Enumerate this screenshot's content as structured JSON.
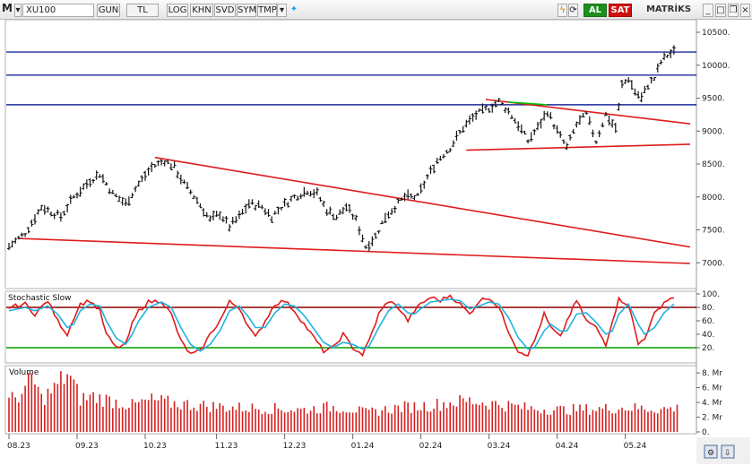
{
  "toolbar": {
    "app_mark": "M",
    "symbol": "XU100",
    "buttons": [
      "GUN",
      "TL",
      "LOG",
      "KHN",
      "SVD",
      "SYM",
      "TMP"
    ],
    "buy_label": "AL",
    "sell_label": "SAT",
    "brand": "MATRİKS",
    "buy_color": "#1a8f1a",
    "sell_color": "#d01010"
  },
  "chart_data": [
    {
      "type": "ohlc",
      "panel": "price",
      "x_tick_labels": [
        "08.23",
        "09.23",
        "10.23",
        "11.23",
        "12.23",
        "01.24",
        "02.24",
        "03.24",
        "04.24",
        "05.24"
      ],
      "y_tick_labels": [
        "10500.",
        "10000.",
        "9500.",
        "9000.",
        "8500.",
        "8000.",
        "7500.",
        "7000."
      ],
      "ylim": [
        6650,
        10650
      ],
      "anchors": [
        [
          0,
          7250
        ],
        [
          5,
          7450
        ],
        [
          10,
          7850
        ],
        [
          16,
          7700
        ],
        [
          20,
          8000
        ],
        [
          25,
          8250
        ],
        [
          28,
          8350
        ],
        [
          32,
          8050
        ],
        [
          36,
          7900
        ],
        [
          40,
          8200
        ],
        [
          44,
          8450
        ],
        [
          48,
          8550
        ],
        [
          51,
          8450
        ],
        [
          54,
          8200
        ],
        [
          58,
          7950
        ],
        [
          62,
          7650
        ],
        [
          65,
          7750
        ],
        [
          68,
          7550
        ],
        [
          71,
          7700
        ],
        [
          74,
          7900
        ],
        [
          78,
          7850
        ],
        [
          81,
          7700
        ],
        [
          84,
          7850
        ],
        [
          88,
          8000
        ],
        [
          92,
          8100
        ],
        [
          95,
          8050
        ],
        [
          98,
          7800
        ],
        [
          101,
          7700
        ],
        [
          104,
          7850
        ],
        [
          107,
          7650
        ],
        [
          110,
          7250
        ],
        [
          113,
          7400
        ],
        [
          116,
          7700
        ],
        [
          119,
          7850
        ],
        [
          122,
          8000
        ],
        [
          126,
          8000
        ],
        [
          129,
          8300
        ],
        [
          132,
          8550
        ],
        [
          136,
          8750
        ],
        [
          140,
          9050
        ],
        [
          144,
          9250
        ],
        [
          148,
          9350
        ],
        [
          151,
          9450
        ],
        [
          154,
          9300
        ],
        [
          157,
          9100
        ],
        [
          160,
          8850
        ],
        [
          163,
          9050
        ],
        [
          166,
          9300
        ],
        [
          169,
          9000
        ],
        [
          172,
          8750
        ],
        [
          175,
          9100
        ],
        [
          178,
          9250
        ],
        [
          181,
          8850
        ],
        [
          184,
          9250
        ],
        [
          187,
          9050
        ],
        [
          188,
          9350
        ],
        [
          189,
          9700
        ],
        [
          191,
          9800
        ],
        [
          193,
          9600
        ],
        [
          195,
          9500
        ],
        [
          197,
          9700
        ],
        [
          199,
          9800
        ],
        [
          201,
          10050
        ],
        [
          203,
          10150
        ],
        [
          205,
          10200
        ]
      ],
      "horizontal_lines": [
        10200,
        9850,
        9400
      ],
      "trend_lines": [
        {
          "color": "#e01b1b",
          "from": [
            45,
            8600
          ],
          "to": [
            210,
            7240
          ]
        },
        {
          "color": "#e01b1b",
          "from": [
            3,
            7370
          ],
          "to": [
            210,
            6990
          ]
        },
        {
          "color": "#e01b1b",
          "from": [
            147,
            9480
          ],
          "to": [
            210,
            9110
          ]
        },
        {
          "color": "#e01b1b",
          "from": [
            141,
            8710
          ],
          "to": [
            210,
            8800
          ]
        },
        {
          "color": "#00c000",
          "from": [
            154,
            9440
          ],
          "to": [
            166,
            9400
          ]
        }
      ]
    },
    {
      "type": "line",
      "panel": "stochastic",
      "title": "Stochastic Slow",
      "y_tick_labels": [
        "100.",
        "80.",
        "60.",
        "40.",
        "20."
      ],
      "ylim": [
        0,
        100
      ],
      "levels": [
        {
          "value": 80,
          "color": "#8b0000"
        },
        {
          "value": 20,
          "color": "#00a000"
        }
      ],
      "series": [
        {
          "color": "#e01b1b",
          "anchors": [
            [
              0,
              80
            ],
            [
              5,
              85
            ],
            [
              8,
              70
            ],
            [
              12,
              90
            ],
            [
              15,
              60
            ],
            [
              18,
              40
            ],
            [
              20,
              65
            ],
            [
              22,
              85
            ],
            [
              25,
              90
            ],
            [
              28,
              75
            ],
            [
              30,
              40
            ],
            [
              33,
              20
            ],
            [
              36,
              25
            ],
            [
              38,
              55
            ],
            [
              40,
              75
            ],
            [
              43,
              88
            ],
            [
              47,
              90
            ],
            [
              50,
              70
            ],
            [
              53,
              30
            ],
            [
              56,
              10
            ],
            [
              59,
              15
            ],
            [
              62,
              40
            ],
            [
              65,
              60
            ],
            [
              68,
              88
            ],
            [
              71,
              80
            ],
            [
              74,
              50
            ],
            [
              76,
              35
            ],
            [
              79,
              60
            ],
            [
              82,
              85
            ],
            [
              85,
              90
            ],
            [
              88,
              75
            ],
            [
              91,
              55
            ],
            [
              94,
              35
            ],
            [
              97,
              15
            ],
            [
              100,
              20
            ],
            [
              103,
              40
            ],
            [
              106,
              20
            ],
            [
              109,
              10
            ],
            [
              111,
              30
            ],
            [
              114,
              70
            ],
            [
              117,
              90
            ],
            [
              120,
              80
            ],
            [
              123,
              60
            ],
            [
              125,
              75
            ],
            [
              127,
              85
            ],
            [
              130,
              95
            ],
            [
              133,
              90
            ],
            [
              136,
              98
            ],
            [
              139,
              85
            ],
            [
              142,
              70
            ],
            [
              145,
              90
            ],
            [
              148,
              95
            ],
            [
              151,
              80
            ],
            [
              154,
              45
            ],
            [
              157,
              15
            ],
            [
              160,
              10
            ],
            [
              162,
              30
            ],
            [
              165,
              70
            ],
            [
              167,
              50
            ],
            [
              170,
              35
            ],
            [
              172,
              60
            ],
            [
              175,
              90
            ],
            [
              178,
              60
            ],
            [
              181,
              50
            ],
            [
              184,
              25
            ],
            [
              186,
              60
            ],
            [
              188,
              92
            ],
            [
              191,
              85
            ],
            [
              194,
              25
            ],
            [
              196,
              35
            ],
            [
              199,
              70
            ],
            [
              202,
              88
            ],
            [
              205,
              96
            ]
          ]
        },
        {
          "color": "#20b4e0",
          "anchors": [
            [
              0,
              75
            ],
            [
              5,
              80
            ],
            [
              8,
              75
            ],
            [
              12,
              82
            ],
            [
              15,
              70
            ],
            [
              18,
              50
            ],
            [
              20,
              55
            ],
            [
              22,
              75
            ],
            [
              25,
              85
            ],
            [
              28,
              82
            ],
            [
              30,
              60
            ],
            [
              33,
              35
            ],
            [
              36,
              25
            ],
            [
              38,
              40
            ],
            [
              40,
              60
            ],
            [
              43,
              80
            ],
            [
              47,
              88
            ],
            [
              50,
              80
            ],
            [
              53,
              50
            ],
            [
              56,
              25
            ],
            [
              59,
              15
            ],
            [
              62,
              25
            ],
            [
              65,
              45
            ],
            [
              68,
              75
            ],
            [
              71,
              82
            ],
            [
              74,
              65
            ],
            [
              76,
              50
            ],
            [
              79,
              50
            ],
            [
              82,
              72
            ],
            [
              85,
              85
            ],
            [
              88,
              82
            ],
            [
              91,
              68
            ],
            [
              94,
              48
            ],
            [
              97,
              28
            ],
            [
              100,
              20
            ],
            [
              103,
              28
            ],
            [
              106,
              25
            ],
            [
              109,
              18
            ],
            [
              111,
              22
            ],
            [
              114,
              50
            ],
            [
              117,
              75
            ],
            [
              120,
              85
            ],
            [
              123,
              72
            ],
            [
              125,
              70
            ],
            [
              127,
              78
            ],
            [
              130,
              88
            ],
            [
              133,
              90
            ],
            [
              136,
              92
            ],
            [
              139,
              90
            ],
            [
              142,
              78
            ],
            [
              145,
              82
            ],
            [
              148,
              88
            ],
            [
              151,
              85
            ],
            [
              154,
              65
            ],
            [
              157,
              35
            ],
            [
              160,
              18
            ],
            [
              162,
              20
            ],
            [
              165,
              45
            ],
            [
              167,
              55
            ],
            [
              170,
              45
            ],
            [
              172,
              45
            ],
            [
              175,
              70
            ],
            [
              178,
              72
            ],
            [
              181,
              58
            ],
            [
              184,
              40
            ],
            [
              186,
              45
            ],
            [
              188,
              70
            ],
            [
              191,
              85
            ],
            [
              194,
              55
            ],
            [
              196,
              40
            ],
            [
              199,
              50
            ],
            [
              202,
              72
            ],
            [
              205,
              85
            ]
          ]
        }
      ]
    },
    {
      "type": "bar",
      "panel": "volume",
      "title": "Volume",
      "y_tick_labels": [
        "8. Mr",
        "6. Mr",
        "4. Mr",
        "2. Mr",
        "0."
      ],
      "ylim": [
        0,
        8.5
      ],
      "anchors": [
        [
          0,
          4.2
        ],
        [
          5,
          5.5
        ],
        [
          7,
          7.5
        ],
        [
          10,
          4.5
        ],
        [
          14,
          5.8
        ],
        [
          18,
          8.0
        ],
        [
          22,
          4.5
        ],
        [
          26,
          4.8
        ],
        [
          32,
          4.2
        ],
        [
          38,
          3.6
        ],
        [
          44,
          4.3
        ],
        [
          50,
          3.9
        ],
        [
          56,
          3.7
        ],
        [
          62,
          3.5
        ],
        [
          70,
          3.3
        ],
        [
          80,
          3.2
        ],
        [
          90,
          3.0
        ],
        [
          100,
          3.4
        ],
        [
          106,
          3.1
        ],
        [
          110,
          2.6
        ],
        [
          120,
          3.3
        ],
        [
          130,
          3.6
        ],
        [
          136,
          4.0
        ],
        [
          142,
          4.2
        ],
        [
          148,
          3.9
        ],
        [
          154,
          3.6
        ],
        [
          160,
          3.2
        ],
        [
          170,
          3.0
        ],
        [
          180,
          3.1
        ],
        [
          190,
          3.3
        ],
        [
          200,
          3.1
        ],
        [
          206,
          3.2
        ]
      ]
    }
  ],
  "panels": {
    "stochastic_title": "Stochastic Slow",
    "volume_title": "Volume"
  }
}
